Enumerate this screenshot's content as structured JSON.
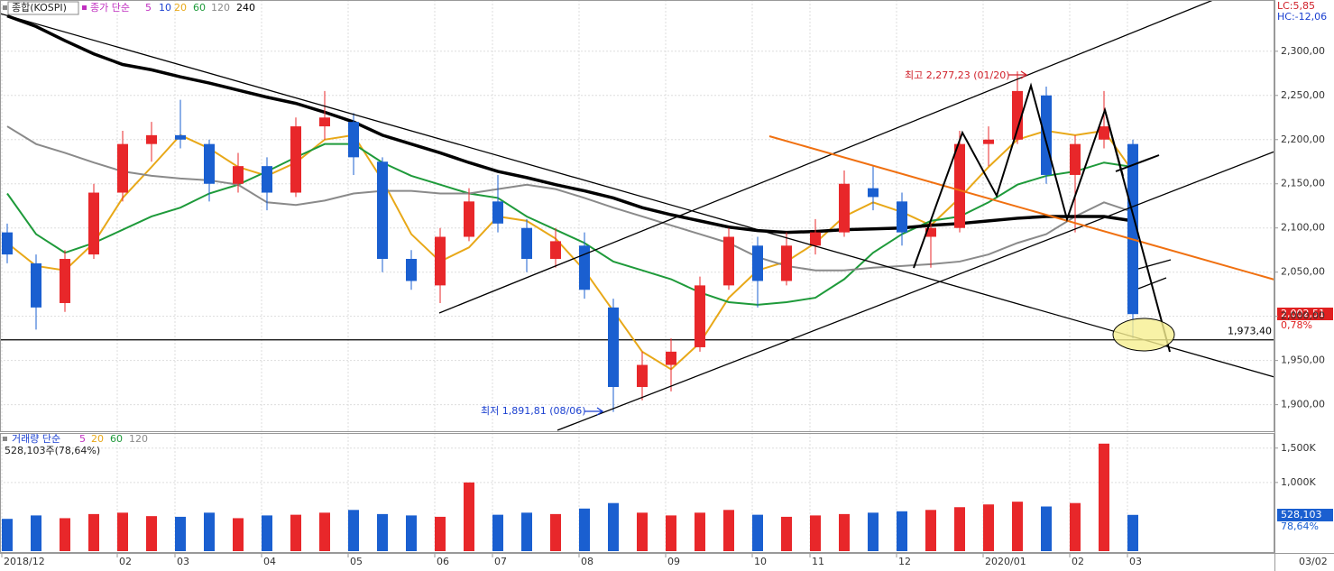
{
  "chart_data": {
    "type": "candlestick",
    "title": "종합(KOSPI)",
    "ma_label": "종가 단순",
    "ma_legend": [
      {
        "name": "5",
        "color": "#c030c0"
      },
      {
        "name": "10",
        "color": "#1a3fd0"
      },
      {
        "name": "20",
        "color": "#e8a818"
      },
      {
        "name": "60",
        "color": "#1e9a3a"
      },
      {
        "name": "120",
        "color": "#8a8a8a"
      },
      {
        "name": "240",
        "color": "#000000"
      }
    ],
    "categories": [
      "2018/12",
      null,
      null,
      null,
      "02",
      null,
      "03",
      null,
      null,
      "04",
      null,
      null,
      "05",
      null,
      null,
      "06",
      null,
      "07",
      null,
      null,
      "08",
      null,
      null,
      "09",
      null,
      null,
      "10",
      null,
      "11",
      null,
      null,
      "12",
      null,
      null,
      "2020/01",
      null,
      null,
      "02",
      null,
      "03"
    ],
    "open": [
      2095,
      2060,
      2015,
      2070,
      2140,
      2195,
      2205,
      2195,
      2150,
      2170,
      2140,
      2215,
      2220,
      2175,
      2065,
      2035,
      2090,
      2130,
      2100,
      2065,
      2080,
      2010,
      1920,
      1945,
      1965,
      2035,
      2080,
      2040,
      2080,
      2095,
      2145,
      2130,
      2090,
      2100,
      2195,
      2200,
      2250,
      2160,
      2200,
      2195
    ],
    "high": [
      2105,
      2070,
      2075,
      2150,
      2210,
      2220,
      2245,
      2200,
      2185,
      2180,
      2225,
      2255,
      2230,
      2180,
      2075,
      2100,
      2145,
      2160,
      2110,
      2100,
      2095,
      2020,
      1960,
      1975,
      2045,
      2100,
      2090,
      2095,
      2110,
      2165,
      2170,
      2140,
      2110,
      2210,
      2215,
      2277.23,
      2260,
      2205,
      2255,
      2200
    ],
    "low": [
      2060,
      1985,
      2005,
      2065,
      2130,
      2175,
      2190,
      2130,
      2140,
      2120,
      2135,
      2200,
      2160,
      2050,
      2030,
      2015,
      2085,
      2095,
      2050,
      2055,
      2020,
      1891.81,
      1905,
      1915,
      1960,
      2030,
      2010,
      2035,
      2070,
      2090,
      2120,
      2080,
      2055,
      2095,
      2170,
      2195,
      2150,
      2095,
      2190,
      1975
    ],
    "close": [
      2070,
      2010,
      2065,
      2140,
      2195,
      2205,
      2200,
      2150,
      2170,
      2140,
      2215,
      2225,
      2180,
      2065,
      2040,
      2090,
      2130,
      2105,
      2065,
      2085,
      2030,
      1920,
      1945,
      1960,
      2035,
      2090,
      2040,
      2080,
      2095,
      2150,
      2135,
      2095,
      2100,
      2195,
      2200,
      2255,
      2160,
      2195,
      2215,
      2002.51
    ],
    "up_color": "#e8272a",
    "down_color": "#1a5fd0",
    "ma_lines": [
      {
        "color": "#e8a818",
        "values": [
          2083,
          2057,
          2052,
          2083,
          2134,
          2169,
          2205,
          2190,
          2169,
          2159,
          2174,
          2200,
          2205,
          2154,
          2093,
          2062,
          2078,
          2113,
          2108,
          2088,
          2052,
          2006,
          1960,
          1940,
          1970,
          2021,
          2052,
          2062,
          2083,
          2113,
          2129,
          2118,
          2103,
          2134,
          2169,
          2200,
          2210,
          2205,
          2210,
          2164
        ]
      },
      {
        "color": "#1e9a3a",
        "values": [
          2139,
          2093,
          2072,
          2083,
          2098,
          2113,
          2123,
          2139,
          2149,
          2164,
          2180,
          2195,
          2195,
          2174,
          2159,
          2149,
          2139,
          2134,
          2113,
          2098,
          2083,
          2062,
          2052,
          2042,
          2027,
          2016,
          2013,
          2016,
          2021,
          2042,
          2072,
          2093,
          2108,
          2113,
          2129,
          2149,
          2159,
          2164,
          2174,
          2169
        ]
      },
      {
        "color": "#8a8a8a",
        "values": [
          2215,
          2195,
          2185,
          2174,
          2164,
          2159,
          2156,
          2154,
          2149,
          2129,
          2126,
          2131,
          2139,
          2142,
          2142,
          2139,
          2139,
          2144,
          2149,
          2144,
          2134,
          2123,
          2113,
          2103,
          2093,
          2083,
          2067,
          2057,
          2052,
          2052,
          2055,
          2057,
          2059,
          2062,
          2070,
          2083,
          2093,
          2113,
          2129,
          2118
        ]
      },
      {
        "color": "#000000",
        "values": [
          2340,
          2328,
          2312,
          2297,
          2285,
          2279,
          2271,
          2264,
          2256,
          2248,
          2241,
          2231,
          2220,
          2205,
          2195,
          2185,
          2174,
          2164,
          2157,
          2149,
          2142,
          2134,
          2123,
          2115,
          2108,
          2101,
          2097,
          2095,
          2096,
          2098,
          2099,
          2100,
          2103,
          2105,
          2108,
          2111,
          2113,
          2113,
          2113,
          2108
        ]
      }
    ],
    "ylim": [
      1870,
      2358
    ],
    "yticks": [
      {
        "value": 2300,
        "label": "2,300,00"
      },
      {
        "value": 2250,
        "label": "2,250,00"
      },
      {
        "value": 2200,
        "label": "2,200,00"
      },
      {
        "value": 2150,
        "label": "2,150,00"
      },
      {
        "value": 2100,
        "label": "2,100,00"
      },
      {
        "value": 2050,
        "label": "2,050,00"
      },
      {
        "value": 2000,
        "label": "2,000,00"
      },
      {
        "value": 1950,
        "label": "1,950,00"
      },
      {
        "value": 1900,
        "label": "1,900,00"
      }
    ],
    "grid": true,
    "support_line": {
      "value": 1973.4,
      "label": "1,973,40"
    },
    "high_note": "최고 2,277,23 (01/20)",
    "low_note": "최저 1,891,81 (08/06)",
    "last_price_label": "2,002,51",
    "last_change_label": "0,78%",
    "lc_label": "LC:5,85",
    "hc_label": "HC:-12,06",
    "volume_label": "거래량 단순",
    "volume_legend": [
      {
        "name": "5",
        "color": "#c030c0"
      },
      {
        "name": "20",
        "color": "#e8a818"
      },
      {
        "name": "60",
        "color": "#1e9a3a"
      },
      {
        "name": "120",
        "color": "#8a8a8a"
      }
    ],
    "volume_info": "528,103주(78,64%)",
    "volume": [
      470,
      520,
      480,
      540,
      560,
      510,
      500,
      560,
      480,
      520,
      530,
      560,
      600,
      540,
      520,
      500,
      1000,
      530,
      560,
      540,
      620,
      700,
      560,
      520,
      560,
      600,
      530,
      500,
      520,
      540,
      560,
      580,
      600,
      640,
      680,
      720,
      650,
      700,
      1565,
      528.103
    ],
    "volume_ylim": [
      0,
      1720
    ],
    "volume_yticks": [
      {
        "value": 1500,
        "label": "1,500K"
      },
      {
        "value": 1000,
        "label": "1,000K"
      }
    ],
    "last_volume_label": "528,103",
    "last_volume_pct": "78,64%",
    "last_date_label": "03/02"
  }
}
